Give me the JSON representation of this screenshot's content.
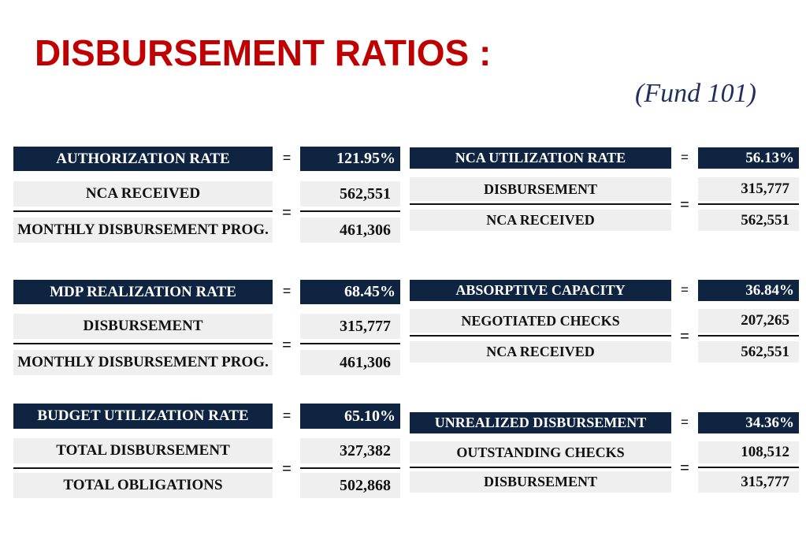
{
  "title": "DISBURSEMENT RATIOS :",
  "subtitle": "(Fund 101)",
  "ratios": [
    {
      "name": "AUTHORIZATION RATE",
      "value": "121.95%",
      "numerator_label": "NCA RECEIVED",
      "numerator_value": "562,551",
      "denominator_label": "MONTHLY DISBURSEMENT PROG.",
      "denominator_value": "461,306"
    },
    {
      "name": "NCA UTILIZATION RATE",
      "value": "56.13%",
      "numerator_label": "DISBURSEMENT",
      "numerator_value": "315,777",
      "denominator_label": "NCA RECEIVED",
      "denominator_value": "562,551"
    },
    {
      "name": "MDP REALIZATION RATE",
      "value": "68.45%",
      "numerator_label": "DISBURSEMENT",
      "numerator_value": "315,777",
      "denominator_label": "MONTHLY DISBURSEMENT PROG.",
      "denominator_value": "461,306"
    },
    {
      "name": "ABSORPTIVE CAPACITY",
      "value": "36.84%",
      "numerator_label": "NEGOTIATED CHECKS",
      "numerator_value": "207,265",
      "denominator_label": "NCA RECEIVED",
      "denominator_value": "562,551"
    },
    {
      "name": "BUDGET UTILIZATION RATE",
      "value": "65.10%",
      "numerator_label": "TOTAL DISBURSEMENT",
      "numerator_value": "327,382",
      "denominator_label": "TOTAL OBLIGATIONS",
      "denominator_value": "502,868"
    },
    {
      "name": "UNREALIZED DISBURSEMENT",
      "value": "34.36%",
      "numerator_label": "OUTSTANDING CHECKS",
      "numerator_value": "108,512",
      "denominator_label": "DISBURSEMENT",
      "denominator_value": "315,777"
    }
  ],
  "equals_sign": "="
}
